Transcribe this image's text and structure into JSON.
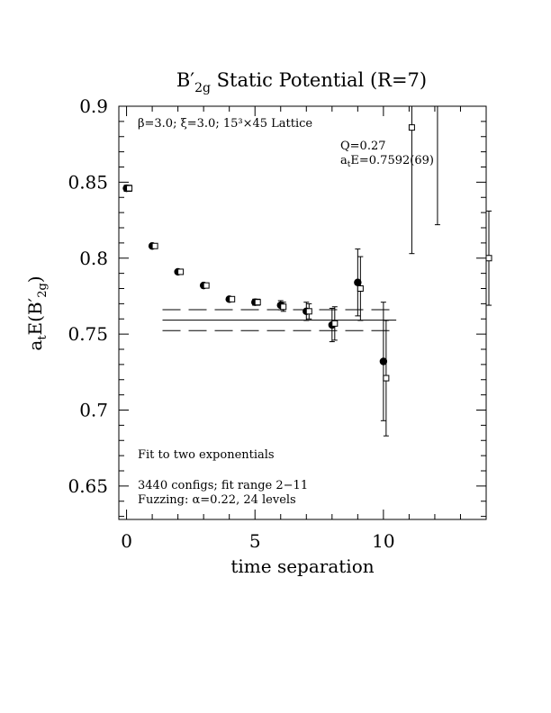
{
  "chart_data": {
    "type": "scatter",
    "title": "B′2g Static Potential (R=7)",
    "title_main": "B′",
    "title_sub": "2g",
    "title_rest": " Static Potential (R=7)",
    "xlabel": "time separation",
    "ylabel": "atE(B′2g)",
    "ylabel_parts": {
      "a": "a",
      "t": "t",
      "E": "E(B′",
      "sub": "2g",
      "close": ")"
    },
    "xlim": [
      -0.3,
      14.0
    ],
    "ylim": [
      0.628,
      0.9
    ],
    "x_ticks": [
      0,
      5,
      10
    ],
    "x_tick_labels": [
      "0",
      "5",
      "10"
    ],
    "y_ticks": [
      0.65,
      0.7,
      0.75,
      0.8,
      0.85,
      0.9
    ],
    "y_tick_labels": [
      "0.65",
      "0.7",
      "0.75",
      "0.8",
      "0.85",
      "0.9"
    ],
    "annotations": {
      "lattice": "β=3.0; ξ=3.0; 15³×45 Lattice",
      "q": "Q=0.27",
      "ae_a": "a",
      "ae_t": "t",
      "ae_rest": "E=0.7592(69)",
      "fit": "Fit to two exponentials",
      "configs": "3440 configs; fit range 2−11",
      "fuzzing": "Fuzzing: α=0.22, 24 levels"
    },
    "fit": {
      "value": 0.7592,
      "error": 0.0069,
      "x_range": [
        1.4,
        10.5
      ]
    },
    "series": [
      {
        "marker": "filled-circle",
        "points": [
          {
            "x": 0,
            "y": 0.846,
            "err": 0.002
          },
          {
            "x": 1,
            "y": 0.808,
            "err": 0.001
          },
          {
            "x": 2,
            "y": 0.791,
            "err": 0.001
          },
          {
            "x": 3,
            "y": 0.782,
            "err": 0.001
          },
          {
            "x": 4,
            "y": 0.773,
            "err": 0.001
          },
          {
            "x": 5,
            "y": 0.771,
            "err": 0.002
          },
          {
            "x": 6,
            "y": 0.769,
            "err": 0.003
          },
          {
            "x": 7,
            "y": 0.765,
            "err": 0.006
          },
          {
            "x": 8,
            "y": 0.756,
            "err": 0.011
          },
          {
            "x": 9,
            "y": 0.784,
            "err": 0.022
          },
          {
            "x": 10,
            "y": 0.732,
            "err": 0.039
          }
        ]
      },
      {
        "marker": "open-square",
        "points": [
          {
            "x": 0,
            "y": 0.846,
            "err": 0.002
          },
          {
            "x": 1,
            "y": 0.808,
            "err": 0.001
          },
          {
            "x": 2,
            "y": 0.791,
            "err": 0.001
          },
          {
            "x": 3,
            "y": 0.782,
            "err": 0.001
          },
          {
            "x": 4,
            "y": 0.773,
            "err": 0.001
          },
          {
            "x": 5,
            "y": 0.771,
            "err": 0.002
          },
          {
            "x": 6,
            "y": 0.768,
            "err": 0.003
          },
          {
            "x": 7,
            "y": 0.765,
            "err": 0.005
          },
          {
            "x": 8,
            "y": 0.757,
            "err": 0.011
          },
          {
            "x": 9,
            "y": 0.78,
            "err": 0.021
          },
          {
            "x": 10,
            "y": 0.721,
            "err": 0.038
          },
          {
            "x": 11,
            "y": 0.886,
            "err": 0.083
          },
          {
            "x": 12,
            "y": 0.9,
            "err": 0.078
          },
          {
            "x": 14,
            "y": 0.8,
            "err": 0.031
          }
        ]
      }
    ]
  }
}
